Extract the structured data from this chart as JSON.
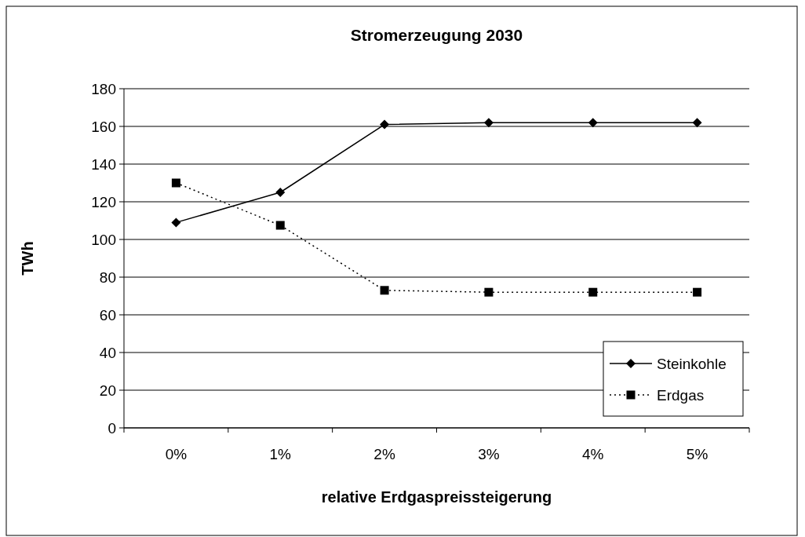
{
  "chart_data": {
    "type": "line",
    "title": "Stromerzeugung 2030",
    "xlabel": "relative Erdgaspreissteigerung",
    "ylabel": "TWh",
    "categories": [
      "0%",
      "1%",
      "2%",
      "3%",
      "4%",
      "5%"
    ],
    "series": [
      {
        "name": "Steinkohle",
        "color": "#000000",
        "values": [
          109,
          125,
          161,
          162,
          162,
          162
        ],
        "marker": "diamond",
        "line_style": "solid"
      },
      {
        "name": "Erdgas",
        "color": "#000000",
        "values": [
          130,
          107.5,
          73,
          72,
          72,
          72
        ],
        "marker": "square",
        "line_style": "dotted"
      }
    ],
    "ylim": [
      0,
      180
    ],
    "yticks": [
      0,
      20,
      40,
      60,
      80,
      100,
      120,
      140,
      160,
      180
    ],
    "grid": "y",
    "legend": "bottom right"
  }
}
